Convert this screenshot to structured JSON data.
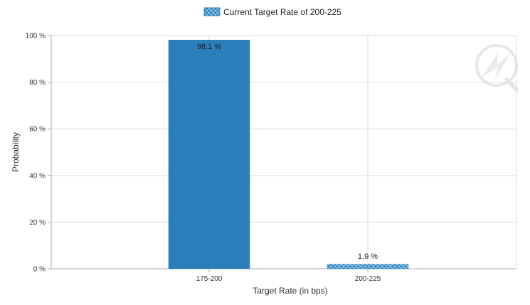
{
  "chart_data": {
    "type": "bar",
    "categories": [
      "175-200",
      "200-225"
    ],
    "values": [
      98.1,
      1.9
    ],
    "value_labels": [
      "98.1 %",
      "1.9 %"
    ],
    "bar_styles": [
      "solid",
      "hatched"
    ],
    "title": "",
    "legend": {
      "label": "Current Target Rate of 200-225",
      "position": "top-center"
    },
    "xlabel": "Target Rate (in bps)",
    "ylabel": "Probability",
    "ylim": [
      0,
      100
    ],
    "yticks": [
      0,
      20,
      40,
      60,
      80,
      100
    ],
    "ytick_labels": [
      "0 %",
      "20 %",
      "40 %",
      "60 %",
      "80 %",
      "100 %"
    ],
    "grid": true,
    "colors": {
      "bar": "#2a7fba",
      "hatch": "#9fd0ee",
      "grid": "#dddddd",
      "axis": "#aaaaaa"
    }
  }
}
